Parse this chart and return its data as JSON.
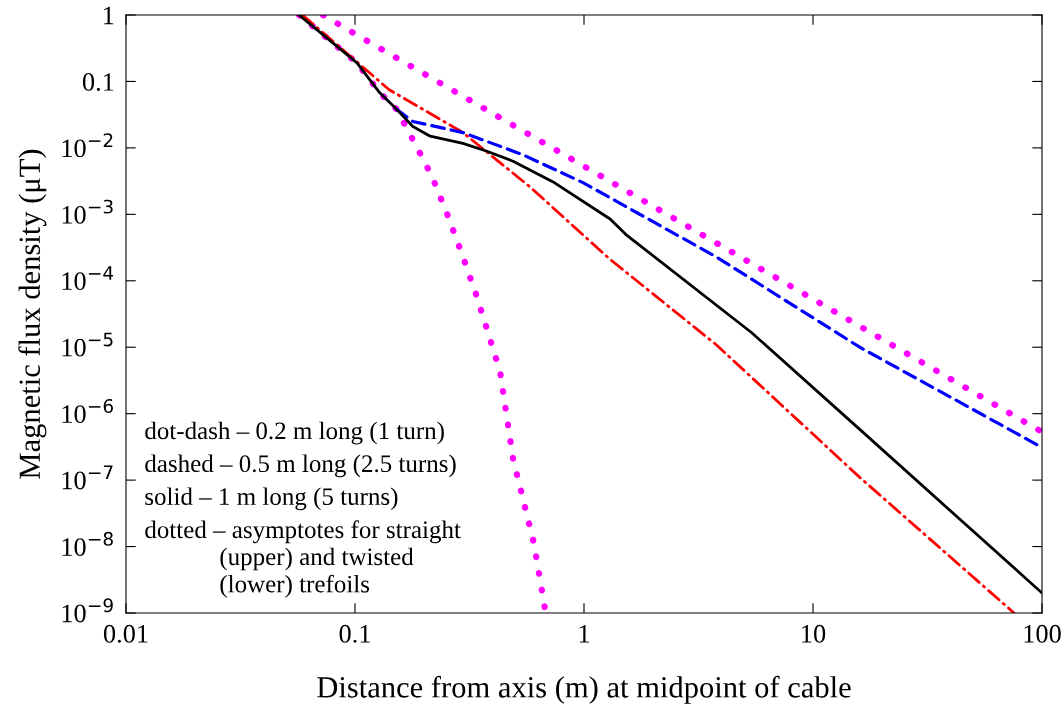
{
  "chart_data": {
    "type": "line",
    "log": "xy",
    "grid": false,
    "legend": false,
    "xlabel": "Distance from axis (m) at midpoint of cable",
    "ylabel": "Magnetic flux density (μT)",
    "xlim": [
      0.01,
      100
    ],
    "ylim": [
      1e-09,
      1
    ],
    "xticks": [
      0.01,
      0.1,
      1,
      10,
      100
    ],
    "yticks": [
      {
        "value": 1e-09,
        "label": "10$^{−9}$"
      },
      {
        "value": 1e-08,
        "label": "10$^{−8}$"
      },
      {
        "value": 1e-07,
        "label": "10$^{−7}$"
      },
      {
        "value": 1e-06,
        "label": "10$^{−6}$"
      },
      {
        "value": 1e-05,
        "label": "10$^{−5}$"
      },
      {
        "value": 0.0001,
        "label": "10$^{−4}$"
      },
      {
        "value": 0.001,
        "label": "10$^{−3}$"
      },
      {
        "value": 0.01,
        "label": "10$^{−2}$"
      },
      {
        "value": 0.1,
        "label": "0.1"
      },
      {
        "value": 1,
        "label": "1"
      }
    ],
    "annotations": [
      "dot-dash – 0.2 m long (1 turn)",
      "dashed – 0.5 m long (2.5 turns)",
      "solid – 1 m long (5 turns)",
      "dotted – asymptotes for straight\n            (upper) and twisted\n            (lower) trefoils"
    ],
    "series": [
      {
        "color": "#ff00ff",
        "line_style": "dotted",
        "x": [
          0.0725,
          0.1,
          1,
          10,
          100
        ],
        "values": [
          1,
          0.52,
          0.0053,
          5.3e-05,
          5.3e-07
        ]
      },
      {
        "color": "#ff00ff",
        "line_style": "dotted",
        "x": [
          0.057,
          0.102,
          0.128,
          0.152,
          0.187,
          0.217,
          0.255,
          0.296,
          0.341,
          0.43,
          0.49,
          0.605,
          0.68
        ],
        "values": [
          1,
          0.19,
          0.068,
          0.038,
          0.01,
          0.0037,
          0.00093,
          0.00023,
          5.7e-05,
          4.3e-06,
          2.1e-07,
          1.1e-08,
          1e-09
        ]
      },
      {
        "color": "#ff0000",
        "line_style": "dashdot",
        "x": [
          0.059,
          0.141,
          0.296,
          0.58,
          1.3,
          3.77,
          16,
          75.5
        ],
        "values": [
          1,
          0.075,
          0.017,
          0.0026,
          0.00021,
          1.1e-05,
          1.1e-07,
          1e-09
        ]
      },
      {
        "color": "#0000ff",
        "line_style": "dashed",
        "x": [
          0.152,
          0.179,
          0.296,
          0.54,
          0.99,
          3.77,
          16,
          100
        ],
        "values": [
          0.038,
          0.025,
          0.017,
          0.0079,
          0.003,
          0.00023,
          1e-05,
          3.1e-07
        ]
      },
      {
        "color": "#000000",
        "line_style": "solid",
        "x": [
          0.057,
          0.102,
          0.128,
          0.152,
          0.179,
          0.213,
          0.296,
          0.377,
          0.49,
          0.73,
          1.3,
          1.52,
          5.4,
          16,
          47.5,
          100
        ],
        "values": [
          1,
          0.19,
          0.068,
          0.038,
          0.021,
          0.015,
          0.0117,
          0.0089,
          0.0063,
          0.0031,
          0.00085,
          0.0005,
          1.65e-05,
          5.8e-07,
          2e-08,
          2e-09
        ]
      }
    ]
  }
}
